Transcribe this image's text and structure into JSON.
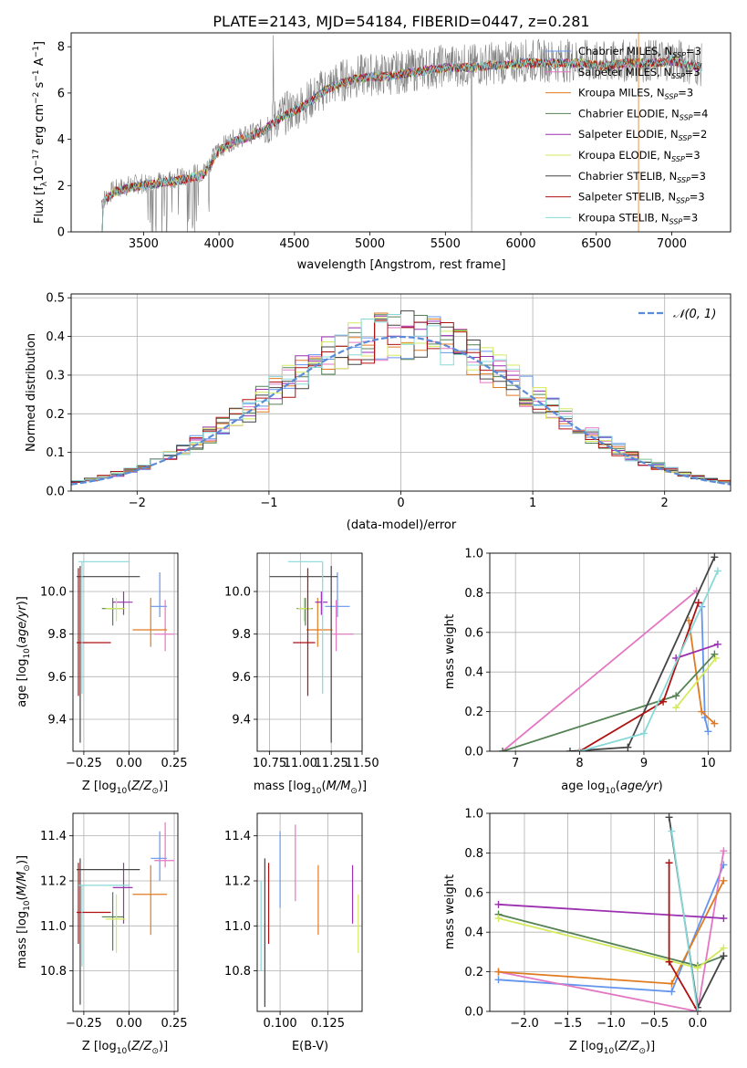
{
  "chart_data": [
    {
      "type": "line",
      "title": "PLATE=2143, MJD=54184, FIBERID=0447, z=0.281",
      "xlabel": "wavelength [Angstrom, rest frame]",
      "ylabel": "Flux [f$_\\lambda$10$^{-17}$ erg cm$^{-2}$ s$^{-1}$ A$^{-1}$]",
      "ylabel_parts": [
        "Flux [f",
        "λ",
        "10",
        "−17",
        " erg cm",
        "−2",
        " s",
        "−1",
        " A",
        "−1",
        "]"
      ],
      "xlim": [
        3020,
        7390
      ],
      "ylim": [
        0,
        8.6
      ],
      "xticks": [
        "3500",
        "4000",
        "4500",
        "5000",
        "5500",
        "6000",
        "6500",
        "7000"
      ],
      "yticks": [
        "0",
        "2",
        "4",
        "6",
        "8"
      ],
      "data_spectrum": {
        "x": [
          3220,
          3300,
          3400,
          3500,
          3600,
          3700,
          3800,
          3900,
          4000,
          4100,
          4200,
          4300,
          4400,
          4500,
          4600,
          4700,
          4800,
          4900,
          5000,
          5100,
          5200,
          5300,
          5400,
          5500,
          5600,
          5700,
          5800,
          5900,
          6000,
          6100,
          6200,
          6300,
          6400,
          6500,
          6600,
          6700,
          6800,
          6900,
          7000,
          7100,
          7200
        ],
        "y": [
          1.3,
          1.8,
          2.0,
          2.1,
          2.2,
          2.3,
          2.4,
          2.6,
          3.6,
          4.0,
          4.2,
          4.5,
          5.0,
          5.3,
          5.7,
          6.2,
          6.5,
          6.7,
          6.8,
          6.8,
          6.9,
          7.0,
          7.1,
          7.2,
          7.2,
          7.2,
          7.3,
          7.3,
          7.4,
          7.4,
          7.4,
          7.4,
          7.4,
          7.3,
          7.3,
          7.4,
          7.4,
          7.4,
          7.5,
          7.3,
          7.2
        ]
      },
      "series": [
        {
          "name": "Chabrier MILES, N$_{SSP}$=3",
          "label_main": "Chabrier MILES, N",
          "label_sub": "SSP",
          "label_tail": "=3",
          "color": "#6495ed"
        },
        {
          "name": "Salpeter MILES, N$_{SSP}$=3",
          "label_main": "Salpeter MILES, N",
          "label_sub": "SSP",
          "label_tail": "=3",
          "color": "#e377c2"
        },
        {
          "name": "Kroupa MILES, N$_{SSP}$=3",
          "label_main": "Kroupa MILES, N",
          "label_sub": "SSP",
          "label_tail": "=3",
          "color": "#e07b20"
        },
        {
          "name": "Chabrier ELODIE, N$_{SSP}$=4",
          "label_main": "Chabrier ELODIE, N",
          "label_sub": "SSP",
          "label_tail": "=4",
          "color": "#548254"
        },
        {
          "name": "Salpeter ELODIE, N$_{SSP}$=2",
          "label_main": "Salpeter ELODIE, N",
          "label_sub": "SSP",
          "label_tail": "=2",
          "color": "#9b30b0"
        },
        {
          "name": "Kroupa ELODIE, N$_{SSP}$=3",
          "label_main": "Kroupa ELODIE, N",
          "label_sub": "SSP",
          "label_tail": "=3",
          "color": "#d4ea5e"
        },
        {
          "name": "Chabrier STELIB, N$_{SSP}$=3",
          "label_main": "Chabrier STELIB, N",
          "label_sub": "SSP",
          "label_tail": "=3",
          "color": "#444444"
        },
        {
          "name": "Salpeter STELIB, N$_{SSP}$=3",
          "label_main": "Salpeter STELIB, N",
          "label_sub": "SSP",
          "label_tail": "=3",
          "color": "#b01010"
        },
        {
          "name": "Kroupa STELIB, N$_{SSP}$=3",
          "label_main": "Kroupa STELIB, N",
          "label_sub": "SSP",
          "label_tail": "=3",
          "color": "#88d8d8"
        }
      ],
      "legend_placement": "upper right",
      "grid": false
    },
    {
      "type": "step-histogram",
      "xlabel": "(data-model)/error",
      "ylabel": "Normed distribution",
      "xlim": [
        -2.5,
        2.5
      ],
      "ylim": [
        0,
        0.51
      ],
      "xticks": [
        "−2",
        "−1",
        "0",
        "1",
        "2"
      ],
      "yticks": [
        "0.0",
        "0.1",
        "0.2",
        "0.3",
        "0.4",
        "0.5"
      ],
      "reference_curve": {
        "name": "$\\mathcal{N}(0,1)$",
        "label": "𝒩(0, 1)",
        "color": "#5b8bd6",
        "style": "dashed"
      },
      "bin_width": 0.1,
      "grid": true,
      "legend_placement": "upper right"
    },
    {
      "type": "errorbar",
      "xlabel": "Z [log$_{10}$(Z/Z$_\\odot$)]",
      "ylabel": "age  [log$_{10}$(age/yr)]",
      "xlim": [
        -0.31,
        0.27
      ],
      "ylim": [
        9.25,
        10.18
      ],
      "xticks": [
        "−0.25",
        "0.00",
        "0.25"
      ],
      "yticks": [
        "9.4",
        "9.6",
        "9.8",
        "10.0"
      ],
      "grid": true,
      "points": [
        {
          "series": "Chabrier MILES",
          "x": 0.17,
          "xerr": [
            0.05,
            0.04
          ],
          "y": 9.93,
          "yerr": [
            0.05,
            0.16
          ]
        },
        {
          "series": "Salpeter MILES",
          "x": 0.2,
          "xerr": [
            0.06,
            0.05
          ],
          "y": 9.8,
          "yerr": [
            0.08,
            0.16
          ]
        },
        {
          "series": "Kroupa MILES",
          "x": 0.12,
          "xerr": [
            0.1,
            0.09
          ],
          "y": 9.82,
          "yerr": [
            0.08,
            0.15
          ]
        },
        {
          "series": "Chabrier ELODIE",
          "x": -0.09,
          "xerr": [
            0.06,
            0.06
          ],
          "y": 9.92,
          "yerr": [
            0.08,
            0.05
          ]
        },
        {
          "series": "Salpeter ELODIE",
          "x": -0.03,
          "xerr": [
            0.06,
            0.05
          ],
          "y": 9.95,
          "yerr": [
            0.06,
            0.05
          ]
        },
        {
          "series": "Kroupa ELODIE",
          "x": -0.07,
          "xerr": [
            0.06,
            0.05
          ],
          "y": 9.92,
          "yerr": [
            0.06,
            0.05
          ]
        },
        {
          "series": "Chabrier STELIB",
          "x": -0.27,
          "xerr": [
            0.02,
            0.33
          ],
          "y": 10.07,
          "yerr": [
            0.78,
            0.05
          ]
        },
        {
          "series": "Salpeter STELIB",
          "x": -0.28,
          "xerr": [
            0.01,
            0.18
          ],
          "y": 9.76,
          "yerr": [
            0.25,
            0.35
          ]
        },
        {
          "series": "Kroupa STELIB",
          "x": -0.26,
          "xerr": [
            0.02,
            0.26
          ],
          "y": 10.14,
          "yerr": [
            0.62,
            0.0
          ]
        }
      ]
    },
    {
      "type": "errorbar",
      "xlabel": "mass [log$_{10}$(M/M$_\\odot$)]",
      "xlim": [
        10.65,
        11.5
      ],
      "ylim": [
        9.25,
        10.18
      ],
      "xticks": [
        "10.75",
        "11.00",
        "11.25",
        "11.50"
      ],
      "yticks": [
        "9.4",
        "9.6",
        "9.8",
        "10.0"
      ],
      "grid": true,
      "points": [
        {
          "series": "Chabrier MILES",
          "x": 11.3,
          "xerr": [
            0.1,
            0.1
          ],
          "y": 9.93,
          "yerr": [
            0.05,
            0.16
          ]
        },
        {
          "series": "Salpeter MILES",
          "x": 11.29,
          "xerr": [
            0.03,
            0.14
          ],
          "y": 9.8,
          "yerr": [
            0.08,
            0.16
          ]
        },
        {
          "series": "Kroupa MILES",
          "x": 11.14,
          "xerr": [
            0.09,
            0.12
          ],
          "y": 9.82,
          "yerr": [
            0.08,
            0.15
          ]
        },
        {
          "series": "Chabrier ELODIE",
          "x": 11.04,
          "xerr": [
            0.07,
            0.06
          ],
          "y": 9.92,
          "yerr": [
            0.08,
            0.05
          ]
        },
        {
          "series": "Salpeter ELODIE",
          "x": 11.17,
          "xerr": [
            0.05,
            0.05
          ],
          "y": 9.95,
          "yerr": [
            0.06,
            0.05
          ]
        },
        {
          "series": "Kroupa ELODIE",
          "x": 11.03,
          "xerr": [
            0.05,
            0.06
          ],
          "y": 9.92,
          "yerr": [
            0.06,
            0.05
          ]
        },
        {
          "series": "Chabrier STELIB",
          "x": 11.25,
          "xerr": [
            0.5,
            0.05
          ],
          "y": 10.07,
          "yerr": [
            0.78,
            0.05
          ]
        },
        {
          "series": "Salpeter STELIB",
          "x": 11.06,
          "xerr": [
            0.12,
            0.06
          ],
          "y": 9.76,
          "yerr": [
            0.25,
            0.35
          ]
        },
        {
          "series": "Kroupa STELIB",
          "x": 11.18,
          "xerr": [
            0.28,
            0.0
          ],
          "y": 10.14,
          "yerr": [
            0.62,
            0.0
          ]
        }
      ]
    },
    {
      "type": "line",
      "xlabel": "age  [log$_{10}$(age/yr)]",
      "ylabel": "mass weight",
      "xlim": [
        6.6,
        10.35
      ],
      "ylim": [
        0,
        1.0
      ],
      "xticks": [
        "7",
        "8",
        "9",
        "10"
      ],
      "yticks": [
        "0.0",
        "0.2",
        "0.4",
        "0.6",
        "0.8",
        "1.0"
      ],
      "grid": true,
      "series": [
        {
          "name": "Chabrier MILES",
          "x": [
            9.9,
            9.95,
            10.0
          ],
          "y": [
            0.73,
            0.17,
            0.1
          ]
        },
        {
          "name": "Salpeter MILES",
          "x": [
            6.8,
            9.82
          ],
          "y": [
            0.0,
            0.81
          ]
        },
        {
          "name": "Kroupa MILES",
          "x": [
            9.7,
            9.9,
            10.1
          ],
          "y": [
            0.66,
            0.2,
            0.14
          ]
        },
        {
          "name": "Chabrier ELODIE",
          "x": [
            6.8,
            9.5,
            10.1
          ],
          "y": [
            0.0,
            0.28,
            0.49
          ]
        },
        {
          "name": "Salpeter ELODIE",
          "x": [
            9.5,
            10.15
          ],
          "y": [
            0.47,
            0.54
          ]
        },
        {
          "name": "Kroupa ELODIE",
          "x": [
            9.5,
            10.12
          ],
          "y": [
            0.22,
            0.47
          ]
        },
        {
          "name": "Chabrier STELIB",
          "x": [
            7.85,
            8.75,
            10.1
          ],
          "y": [
            0.0,
            0.02,
            0.98
          ]
        },
        {
          "name": "Salpeter STELIB",
          "x": [
            8.0,
            9.3,
            9.85
          ],
          "y": [
            0.0,
            0.25,
            0.75
          ]
        },
        {
          "name": "Kroupa STELIB",
          "x": [
            8.0,
            9.0,
            10.15
          ],
          "y": [
            0.0,
            0.09,
            0.91
          ]
        }
      ]
    },
    {
      "type": "errorbar",
      "xlabel": "Z [log$_{10}$(Z/Z$_\\odot$)]",
      "ylabel": "mass [log$_{10}$(M/M$_\\odot$)]",
      "xlim": [
        -0.31,
        0.27
      ],
      "ylim": [
        10.62,
        11.5
      ],
      "xticks": [
        "−0.25",
        "0.00",
        "0.25"
      ],
      "yticks": [
        "10.8",
        "11.0",
        "11.2",
        "11.4"
      ],
      "grid": true,
      "points": [
        {
          "series": "Chabrier MILES",
          "x": 0.17,
          "xerr": [
            0.05,
            0.04
          ],
          "y": 11.3,
          "yerr": [
            0.1,
            0.12
          ]
        },
        {
          "series": "Salpeter MILES",
          "x": 0.2,
          "xerr": [
            0.06,
            0.05
          ],
          "y": 11.29,
          "yerr": [
            0.03,
            0.17
          ]
        },
        {
          "series": "Kroupa MILES",
          "x": 0.12,
          "xerr": [
            0.1,
            0.09
          ],
          "y": 11.14,
          "yerr": [
            0.18,
            0.13
          ]
        },
        {
          "series": "Chabrier ELODIE",
          "x": -0.09,
          "xerr": [
            0.06,
            0.06
          ],
          "y": 11.04,
          "yerr": [
            0.15,
            0.11
          ]
        },
        {
          "series": "Salpeter ELODIE",
          "x": -0.03,
          "xerr": [
            0.06,
            0.05
          ],
          "y": 11.17,
          "yerr": [
            0.16,
            0.11
          ]
        },
        {
          "series": "Kroupa ELODIE",
          "x": -0.07,
          "xerr": [
            0.06,
            0.05
          ],
          "y": 11.03,
          "yerr": [
            0.15,
            0.11
          ]
        },
        {
          "series": "Chabrier STELIB",
          "x": -0.27,
          "xerr": [
            0.02,
            0.33
          ],
          "y": 11.25,
          "yerr": [
            0.6,
            0.05
          ]
        },
        {
          "series": "Salpeter STELIB",
          "x": -0.28,
          "xerr": [
            0.01,
            0.18
          ],
          "y": 11.06,
          "yerr": [
            0.14,
            0.22
          ]
        },
        {
          "series": "Kroupa STELIB",
          "x": -0.26,
          "xerr": [
            0.02,
            0.26
          ],
          "y": 11.18,
          "yerr": [
            0.36,
            0.0
          ]
        }
      ]
    },
    {
      "type": "errorbar",
      "xlabel": "E(B-V)",
      "xlim": [
        0.088,
        0.143
      ],
      "ylim": [
        10.62,
        11.5
      ],
      "xticks": [
        "0.100",
        "0.125"
      ],
      "yticks": [
        "10.8",
        "11.0",
        "11.2",
        "11.4"
      ],
      "grid": true,
      "points": [
        {
          "series": "Chabrier MILES",
          "x": 0.1,
          "y": 11.25,
          "yerr": [
            0.17,
            0.17
          ]
        },
        {
          "series": "Salpeter MILES",
          "x": 0.108,
          "y": 11.28,
          "yerr": [
            0.17,
            0.17
          ]
        },
        {
          "series": "Kroupa MILES",
          "x": 0.12,
          "y": 11.12,
          "yerr": [
            0.16,
            0.15
          ]
        },
        {
          "series": "Salpeter ELODIE",
          "x": 0.138,
          "y": 11.12,
          "yerr": [
            0.11,
            0.15
          ]
        },
        {
          "series": "Kroupa ELODIE",
          "x": 0.141,
          "y": 11.01,
          "yerr": [
            0.13,
            0.13
          ]
        },
        {
          "series": "Chabrier STELIB",
          "x": 0.092,
          "y": 10.97,
          "yerr": [
            0.33,
            0.33
          ]
        },
        {
          "series": "Salpeter STELIB",
          "x": 0.094,
          "y": 11.1,
          "yerr": [
            0.18,
            0.18
          ]
        },
        {
          "series": "Kroupa STELIB",
          "x": 0.09,
          "y": 11.05,
          "yerr": [
            0.25,
            0.15
          ]
        }
      ]
    },
    {
      "type": "line",
      "xlabel": "Z [log$_{10}$(Z/Z$_\\odot$)]",
      "ylabel": "mass weight",
      "xlim": [
        -2.4,
        0.38
      ],
      "ylim": [
        0,
        1.0
      ],
      "xticks": [
        "−2.0",
        "−1.5",
        "−1.0",
        "−0.5",
        "0.0"
      ],
      "yticks": [
        "0.0",
        "0.2",
        "0.4",
        "0.6",
        "0.8",
        "1.0"
      ],
      "grid": true,
      "series": [
        {
          "name": "Chabrier MILES",
          "x": [
            -2.3,
            -0.3,
            0.3
          ],
          "y": [
            0.16,
            0.1,
            0.74
          ]
        },
        {
          "name": "Salpeter MILES",
          "x": [
            -2.3,
            0.0,
            0.3
          ],
          "y": [
            0.2,
            0.0,
            0.81
          ]
        },
        {
          "name": "Kroupa MILES",
          "x": [
            -2.3,
            -0.3,
            0.3
          ],
          "y": [
            0.2,
            0.14,
            0.66
          ]
        },
        {
          "name": "Chabrier ELODIE",
          "x": [
            -2.3,
            0.0,
            0.3
          ],
          "y": [
            0.49,
            0.23,
            0.28
          ]
        },
        {
          "name": "Salpeter ELODIE",
          "x": [
            -2.3,
            0.3
          ],
          "y": [
            0.54,
            0.47
          ]
        },
        {
          "name": "Kroupa ELODIE",
          "x": [
            -2.3,
            0.0,
            0.3
          ],
          "y": [
            0.47,
            0.22,
            0.32
          ]
        },
        {
          "name": "Chabrier STELIB",
          "x": [
            -0.33,
            0.0,
            0.3
          ],
          "y": [
            0.98,
            0.02,
            0.28
          ]
        },
        {
          "name": "Salpeter STELIB",
          "x": [
            -0.33,
            -0.33,
            0.0
          ],
          "y": [
            0.75,
            0.25,
            0.0
          ]
        },
        {
          "name": "Kroupa STELIB",
          "x": [
            -0.3,
            0.0
          ],
          "y": [
            0.91,
            0.0
          ]
        }
      ]
    }
  ]
}
